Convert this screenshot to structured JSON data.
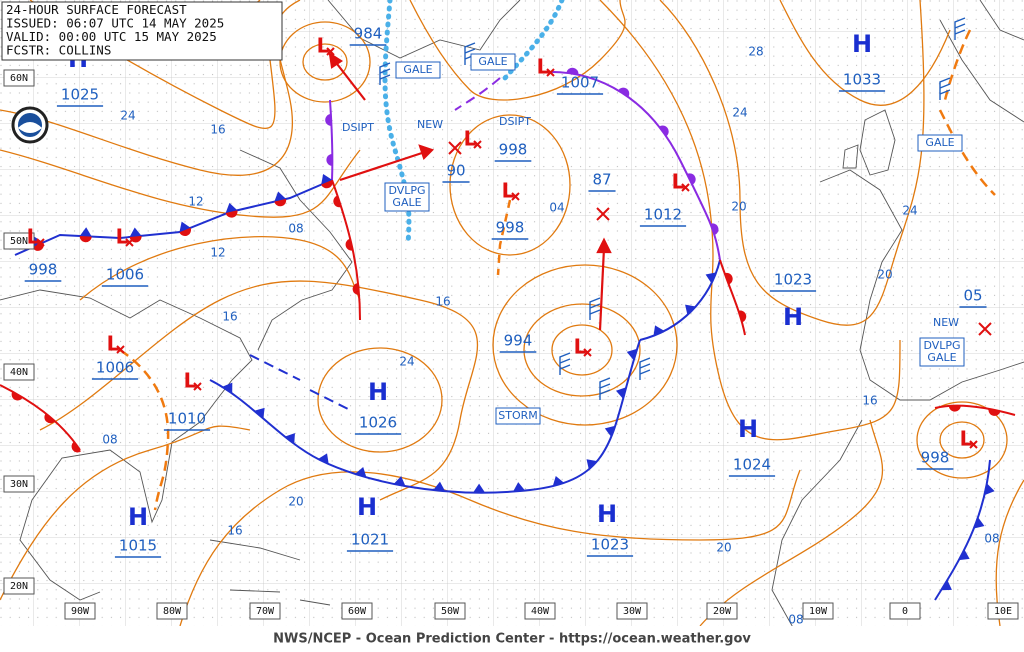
{
  "header": {
    "lines": [
      "24-HOUR SURFACE FORECAST",
      "ISSUED: 06:07 UTC 14 MAY 2025",
      "VALID:  00:00 UTC 15 MAY 2025",
      "FCSTR:  COLLINS"
    ]
  },
  "footer": "NWS/NCEP - Ocean Prediction Center - https://ocean.weather.gov",
  "lat_labels": [
    "60N",
    "50N",
    "40N",
    "30N",
    "20N"
  ],
  "lon_labels": [
    "90W",
    "80W",
    "70W",
    "60W",
    "50W",
    "40W",
    "30W",
    "20W",
    "10W",
    "0",
    "10E"
  ],
  "systems": [
    {
      "symbol": "H",
      "pressure": "1025"
    },
    {
      "symbol": "H",
      "pressure": "1033"
    },
    {
      "symbol": "H",
      "pressure": "1026"
    },
    {
      "symbol": "H",
      "pressure": "1021"
    },
    {
      "symbol": "H",
      "pressure": "1015"
    },
    {
      "symbol": "H",
      "pressure": "1023"
    },
    {
      "symbol": "H",
      "pressure": "1024"
    },
    {
      "symbol": "H",
      "pressure": "1023"
    },
    {
      "symbol": "L",
      "pressure": "984"
    },
    {
      "symbol": "L",
      "pressure": "1007"
    },
    {
      "symbol": "L",
      "pressure": "998"
    },
    {
      "symbol": "L",
      "pressure": "998"
    },
    {
      "pressure": "90"
    },
    {
      "pressure": "87"
    },
    {
      "symbol": "L",
      "pressure": "1012"
    },
    {
      "symbol": "L",
      "pressure": "994"
    },
    {
      "symbol": "L",
      "pressure": "998"
    },
    {
      "symbol": "L",
      "pressure": "1006"
    },
    {
      "symbol": "L",
      "pressure": "1006"
    },
    {
      "symbol": "L",
      "pressure": "1010"
    },
    {
      "symbol": "L",
      "pressure": "998"
    },
    {
      "pressure": "05"
    }
  ],
  "isobar_labels": [
    "24",
    "16",
    "12",
    "08",
    "12",
    "16",
    "24",
    "16",
    "08",
    "20",
    "16",
    "04",
    "28",
    "24",
    "20",
    "24",
    "20",
    "16",
    "20",
    "08",
    "08"
  ],
  "tags": [
    {
      "lines": [
        "GALE"
      ],
      "boxed": true
    },
    {
      "lines": [
        "GALE"
      ],
      "boxed": true
    },
    {
      "lines": [
        "DSIPT"
      ]
    },
    {
      "lines": [
        "NEW"
      ]
    },
    {
      "lines": [
        "DSIPT"
      ]
    },
    {
      "lines": [
        "DVLPG",
        "GALE"
      ],
      "boxed": true
    },
    {
      "lines": [
        "STORM"
      ],
      "boxed": true
    },
    {
      "lines": [
        "GALE"
      ],
      "boxed": true
    },
    {
      "lines": [
        "NEW"
      ]
    },
    {
      "lines": [
        "DVLPG",
        "GALE"
      ],
      "boxed": true
    }
  ]
}
